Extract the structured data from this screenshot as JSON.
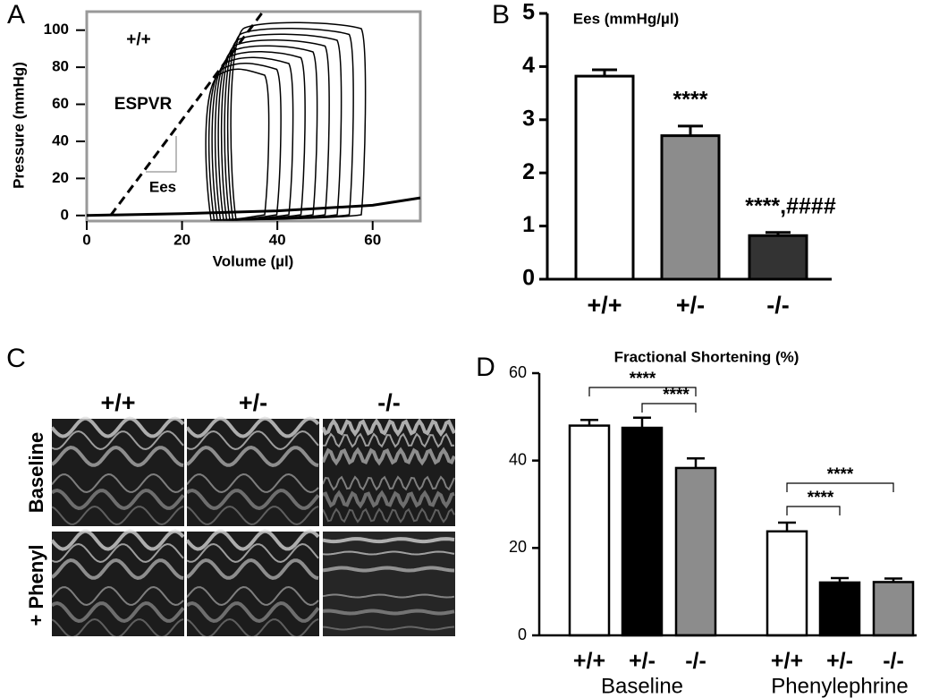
{
  "chart_data": [
    {
      "type": "line",
      "label": "A",
      "annotations": [
        "+/+",
        "ESPVR",
        "Ees"
      ],
      "xlabel": "Volume (µl)",
      "ylabel": "Pressure (mmHg)",
      "xlim": [
        0,
        70
      ],
      "ylim": [
        -3,
        110
      ],
      "xticks": [
        0,
        20,
        40,
        60
      ],
      "yticks": [
        0,
        20,
        40,
        60,
        80,
        100
      ],
      "series": [
        {
          "x": [
            5,
            37
          ],
          "values": [
            0,
            110
          ],
          "color": "#000000",
          "dashed": true
        },
        {
          "x": [
            0,
            20,
            40,
            60,
            70
          ],
          "values": [
            0,
            1,
            2.5,
            5.5,
            9.5
          ],
          "color": "#000000"
        }
      ]
    },
    {
      "type": "bar",
      "label": "B",
      "title": "Ees (mmHg/µl)",
      "categories": [
        "+/+",
        "+/-",
        "-/-"
      ],
      "values": [
        3.82,
        2.7,
        0.82
      ],
      "errors": [
        0.12,
        0.18,
        0.06
      ],
      "colors": [
        "#ffffff",
        "#8c8c8c",
        "#333333"
      ],
      "ylim": [
        0,
        5
      ],
      "yticks": [
        0,
        1,
        2,
        3,
        4,
        5
      ],
      "annotations": [
        {
          "category": "+/-",
          "text": "****"
        },
        {
          "category": "-/-",
          "text": "****,####"
        }
      ]
    },
    {
      "type": "grouped_bar",
      "label": "D",
      "title": "Fractional Shortening (%)",
      "categories": [
        "Baseline",
        "Phenylephrine"
      ],
      "series": [
        {
          "name": "+/+",
          "color": "#ffffff",
          "values": [
            48,
            23.8
          ],
          "errors": [
            1.3,
            2.0
          ]
        },
        {
          "name": "+/-",
          "color": "#000000",
          "values": [
            47.5,
            12.1
          ],
          "errors": [
            2.3,
            1.0
          ]
        },
        {
          "name": "-/-",
          "color": "#8c8c8c",
          "values": [
            38.3,
            12.2
          ],
          "errors": [
            2.2,
            0.8
          ]
        }
      ],
      "ylim": [
        0,
        60
      ],
      "yticks": [
        0,
        20,
        40,
        60
      ],
      "brackets": [
        {
          "group": "Baseline",
          "from": "+/+",
          "to": "-/-",
          "text": "****"
        },
        {
          "group": "Baseline",
          "from": "+/-",
          "to": "-/-",
          "text": "****"
        },
        {
          "group": "Phenylephrine",
          "from": "+/+",
          "to": "-/-",
          "text": "****"
        },
        {
          "group": "Phenylephrine",
          "from": "+/+",
          "to": "+/-",
          "text": "****"
        }
      ]
    }
  ],
  "panel_c": {
    "label": "C",
    "columns": [
      "+/+",
      "+/-",
      "-/-"
    ],
    "rows": [
      "Baseline",
      "+ Phenyl"
    ]
  }
}
